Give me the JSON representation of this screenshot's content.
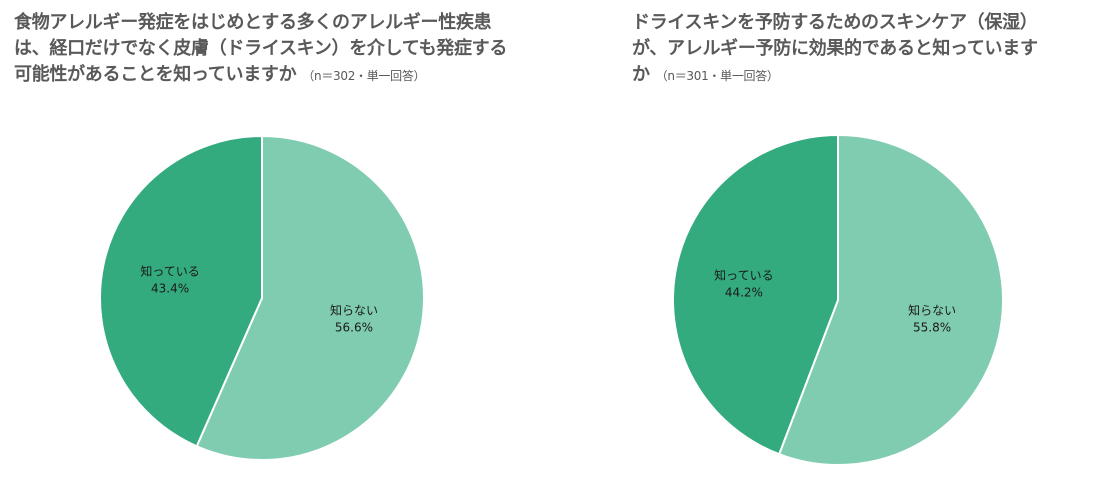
{
  "chart_data": [
    {
      "type": "pie",
      "title": "食物アレルギー発症をはじめとする多くのアレルギー性疾患は、経口だけでなく皮膚（ドライスキン）を介しても発症する可能性があることを知っていますか",
      "note": "（n＝302・単一回答）",
      "slices": [
        {
          "label": "知っている",
          "value": 43.4,
          "value_text": "43.4%",
          "color": "#33ab7f"
        },
        {
          "label": "知らない",
          "value": 56.6,
          "value_text": "56.6%",
          "color": "#80ccb0"
        }
      ]
    },
    {
      "type": "pie",
      "title": "ドライスキンを予防するためのスキンケア（保湿）が、アレルギー予防に効果的であると知っていますか",
      "note": "（n＝301・単一回答）",
      "slices": [
        {
          "label": "知っている",
          "value": 44.2,
          "value_text": "44.2%",
          "color": "#33ab7f"
        },
        {
          "label": "知らない",
          "value": 55.8,
          "value_text": "55.8%",
          "color": "#80ccb0"
        }
      ]
    }
  ]
}
